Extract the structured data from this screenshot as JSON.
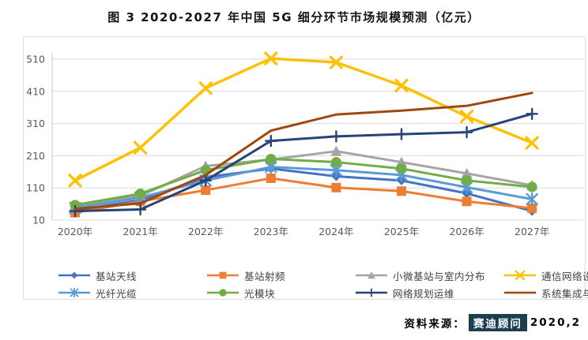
{
  "title": "图 3 2020-2027 年中国 5G 细分环节市场规模预测（亿元）",
  "source": {
    "label": "资料来源：",
    "publisher": "赛迪顾问",
    "date": "2020,2"
  },
  "colors": {
    "grid": "#d9d9d9",
    "axis_line": "#c8c8c8",
    "axis_text": "#595959",
    "legend_text": "#3f3f3f",
    "source_badge_bg": "#1d3e51",
    "source_badge_text": "#ffffff"
  },
  "chart_data": {
    "type": "line",
    "title": "图 3 2020-2027 年中国 5G 细分环节市场规模预测（亿元）",
    "categories": [
      "2020年",
      "2021年",
      "2022年",
      "2023年",
      "2024年",
      "2025年",
      "2026年",
      "2027年"
    ],
    "yticks": [
      10,
      110,
      210,
      310,
      410,
      510
    ],
    "ylim": [
      10,
      510
    ],
    "grid": true,
    "legend_position": "bottom",
    "series": [
      {
        "name": "基站天线",
        "color": "#4472C4",
        "marker": "diamond",
        "values": [
          40,
          72,
          143,
          170,
          146,
          133,
          93,
          38
        ]
      },
      {
        "name": "基站射频",
        "color": "#ED7D31",
        "marker": "square",
        "values": [
          33,
          68,
          103,
          140,
          111,
          100,
          68,
          47
        ]
      },
      {
        "name": "小微基站与室内分布",
        "color": "#A5A5A5",
        "marker": "triangle",
        "values": [
          55,
          85,
          178,
          198,
          224,
          190,
          155,
          118
        ]
      },
      {
        "name": "通信网络设备",
        "color": "#FFC000",
        "marker": "x",
        "values": [
          133,
          235,
          420,
          512,
          500,
          428,
          332,
          250
        ]
      },
      {
        "name": "光纤光缆",
        "color": "#5B9BD5",
        "marker": "star",
        "values": [
          48,
          80,
          133,
          175,
          165,
          150,
          112,
          75
        ]
      },
      {
        "name": "光模块",
        "color": "#70AD47",
        "marker": "circle",
        "values": [
          57,
          92,
          165,
          200,
          190,
          170,
          133,
          113
        ]
      },
      {
        "name": "网络规划运维",
        "color": "#264478",
        "marker": "plus",
        "values": [
          38,
          43,
          133,
          256,
          270,
          277,
          283,
          340
        ]
      },
      {
        "name": "系统集成与应用服务",
        "color": "#9E480E",
        "marker": "none",
        "values": [
          45,
          62,
          150,
          288,
          338,
          350,
          365,
          405
        ]
      }
    ]
  }
}
